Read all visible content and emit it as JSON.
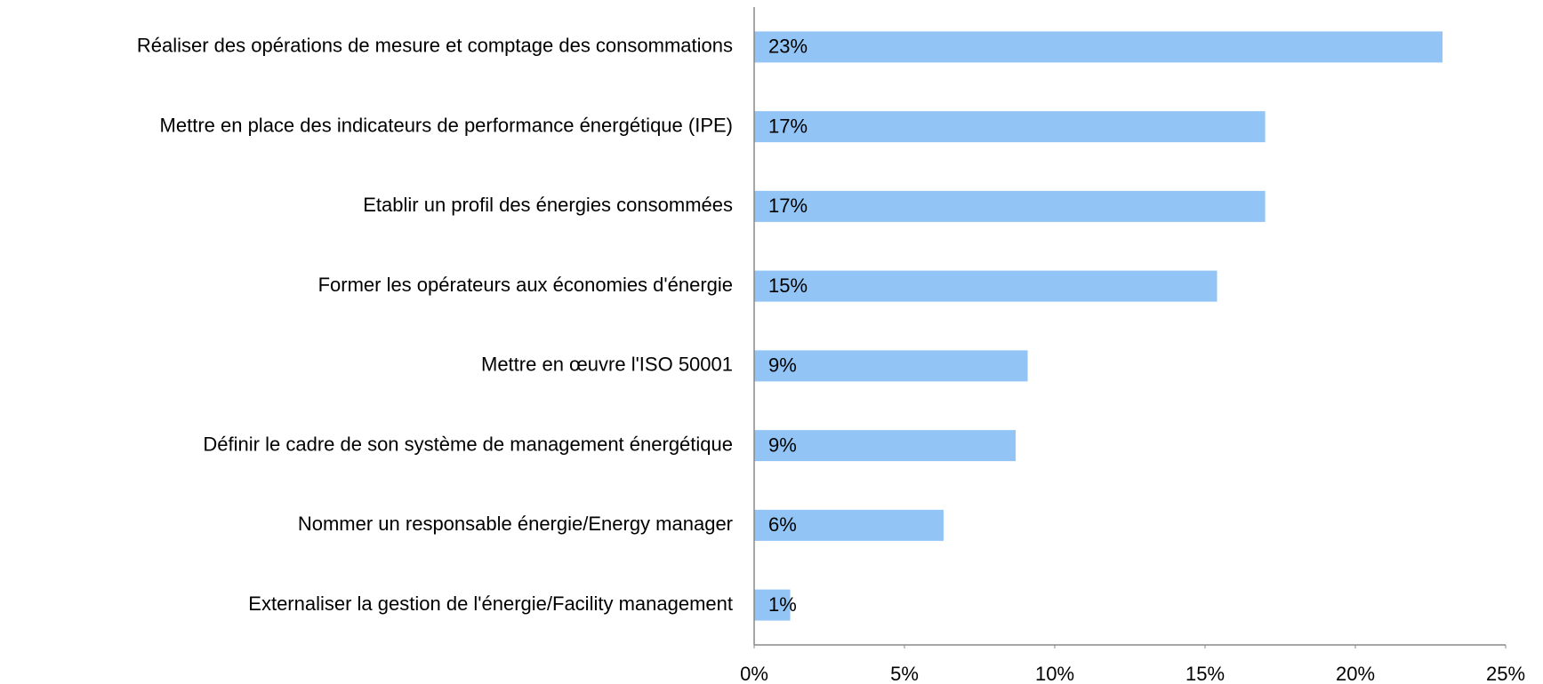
{
  "chart_data": {
    "type": "barh",
    "categories": [
      "Réaliser des opérations de mesure et comptage des consommations",
      "Mettre en place des indicateurs de performance énergétique (IPE)",
      "Etablir un profil des énergies consommées",
      "Former les opérateurs aux économies d'énergie",
      "Mettre en œuvre l'ISO 50001",
      "Définir le cadre de son système de management énergétique",
      "Nommer un responsable énergie/Energy manager",
      "Externaliser la gestion de l'énergie/Facility management"
    ],
    "values": [
      22.9,
      17.0,
      17.0,
      15.4,
      9.1,
      8.7,
      6.3,
      1.2
    ],
    "value_labels": [
      "23%",
      "17%",
      "17%",
      "15%",
      "9%",
      "9%",
      "6%",
      "1%"
    ],
    "color": "#92c5f5",
    "xlim": [
      0,
      25
    ],
    "xticks": [
      {
        "value": 0,
        "label": "0%"
      },
      {
        "value": 5,
        "label": "5%"
      },
      {
        "value": 10,
        "label": "10%"
      },
      {
        "value": 15,
        "label": "15%"
      },
      {
        "value": 20,
        "label": "20%"
      },
      {
        "value": 25,
        "label": "25%"
      }
    ]
  }
}
